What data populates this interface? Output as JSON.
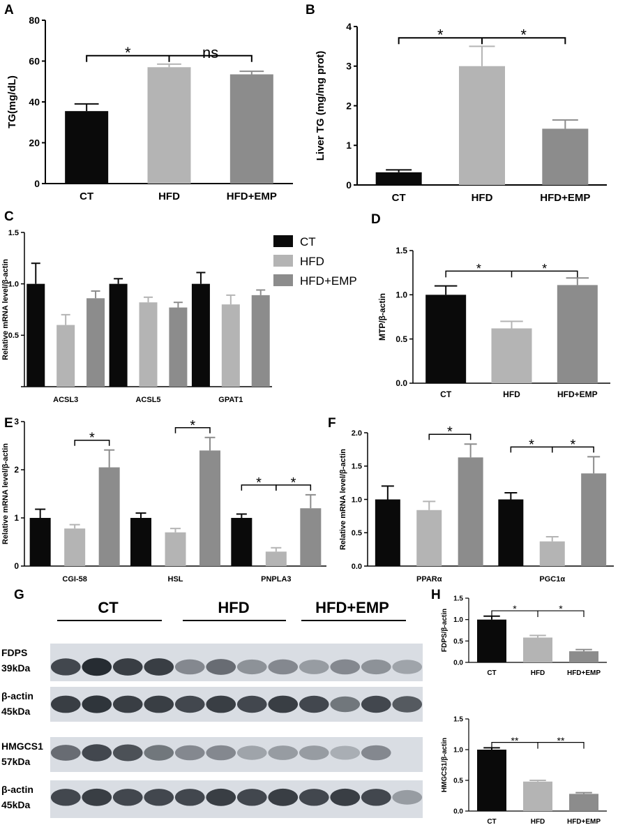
{
  "panel_labels": [
    "A",
    "B",
    "C",
    "D",
    "E",
    "F",
    "G",
    "H"
  ],
  "colors": {
    "CT": "#0a0a0a",
    "HFD": "#b4b4b4",
    "HFD+EMP": "#8c8c8c"
  },
  "legend": [
    {
      "key": "CT",
      "label": "CT"
    },
    {
      "key": "HFD",
      "label": "HFD"
    },
    {
      "key": "HFD+EMP",
      "label": "HFD+EMP"
    }
  ],
  "chart_data": [
    {
      "id": "A",
      "type": "bar",
      "ylabel": "TG(mg/dL)",
      "ylim": [
        0,
        80
      ],
      "yticks": [
        0,
        20,
        40,
        60,
        80
      ],
      "categories": [
        "CT",
        "HFD",
        "HFD+EMP"
      ],
      "values": [
        35.5,
        57,
        53.5
      ],
      "errors": [
        3.5,
        1.5,
        1.5
      ],
      "significance": [
        {
          "from": 0,
          "to": 1,
          "label": "*"
        },
        {
          "from": 1,
          "to": 2,
          "label": "ns"
        }
      ]
    },
    {
      "id": "B",
      "type": "bar",
      "ylabel": "Liver TG (mg/mg prot)",
      "ylim": [
        0,
        4
      ],
      "yticks": [
        0,
        1,
        2,
        3,
        4
      ],
      "categories": [
        "CT",
        "HFD",
        "HFD+EMP"
      ],
      "values": [
        0.32,
        3.0,
        1.42
      ],
      "errors": [
        0.06,
        0.5,
        0.22
      ],
      "significance": [
        {
          "from": 0,
          "to": 1,
          "label": "*"
        },
        {
          "from": 1,
          "to": 2,
          "label": "*"
        }
      ]
    },
    {
      "id": "C",
      "type": "bar",
      "ylabel": "Relative mRNA level/β-actin",
      "ylim": [
        0,
        1.5
      ],
      "yticks": [
        0.0,
        0.5,
        1.0,
        1.5
      ],
      "tick_labels": [
        "",
        "0.5",
        "1.0",
        "1.5"
      ],
      "categories": [
        "ACSL3",
        "ACSL5",
        "GPAT1"
      ],
      "series": [
        {
          "key": "CT",
          "values": [
            1.0,
            1.0,
            1.0
          ],
          "errors": [
            0.2,
            0.05,
            0.11
          ]
        },
        {
          "key": "HFD",
          "values": [
            0.6,
            0.82,
            0.8
          ],
          "errors": [
            0.1,
            0.05,
            0.09
          ]
        },
        {
          "key": "HFD+EMP",
          "values": [
            0.86,
            0.77,
            0.89
          ],
          "errors": [
            0.07,
            0.05,
            0.05
          ]
        }
      ],
      "significance": []
    },
    {
      "id": "D",
      "type": "bar",
      "ylabel": "MTP/β-actin",
      "ylim": [
        0,
        1.5
      ],
      "yticks": [
        0.0,
        0.5,
        1.0,
        1.5
      ],
      "categories": [
        "CT",
        "HFD",
        "HFD+EMP"
      ],
      "values": [
        1.0,
        0.62,
        1.11
      ],
      "errors": [
        0.1,
        0.08,
        0.08
      ],
      "significance": [
        {
          "from": 0,
          "to": 1,
          "label": "*"
        },
        {
          "from": 1,
          "to": 2,
          "label": "*"
        }
      ]
    },
    {
      "id": "E",
      "type": "bar",
      "ylabel": "Relative mRNA level/β-actin",
      "ylim": [
        0,
        3
      ],
      "yticks": [
        0,
        1,
        2,
        3
      ],
      "categories": [
        "CGI-58",
        "HSL",
        "PNPLA3"
      ],
      "series": [
        {
          "key": "CT",
          "values": [
            1.0,
            1.0,
            1.0
          ],
          "errors": [
            0.18,
            0.1,
            0.08
          ]
        },
        {
          "key": "HFD",
          "values": [
            0.78,
            0.7,
            0.3
          ],
          "errors": [
            0.08,
            0.08,
            0.08
          ]
        },
        {
          "key": "HFD+EMP",
          "values": [
            2.05,
            2.4,
            1.2
          ],
          "errors": [
            0.36,
            0.27,
            0.28
          ]
        }
      ],
      "significance": [
        {
          "group": 0,
          "from": 1,
          "to": 2,
          "label": "*"
        },
        {
          "group": 1,
          "from": 1,
          "to": 2,
          "label": "*"
        },
        {
          "group": 2,
          "from": 0,
          "to": 1,
          "label": "*"
        },
        {
          "group": 2,
          "from": 1,
          "to": 2,
          "label": "*"
        }
      ]
    },
    {
      "id": "F",
      "type": "bar",
      "ylabel": "Relative mRNA level/β-actin",
      "ylim": [
        0,
        2
      ],
      "yticks": [
        0.0,
        0.5,
        1.0,
        1.5,
        2.0
      ],
      "categories": [
        "PPARα",
        "PGC1α"
      ],
      "series": [
        {
          "key": "CT",
          "values": [
            1.0,
            1.0
          ],
          "errors": [
            0.2,
            0.1
          ]
        },
        {
          "key": "HFD",
          "values": [
            0.84,
            0.37
          ],
          "errors": [
            0.13,
            0.07
          ]
        },
        {
          "key": "HFD+EMP",
          "values": [
            1.63,
            1.39
          ],
          "errors": [
            0.2,
            0.25
          ]
        }
      ],
      "significance": [
        {
          "group": 0,
          "from": 1,
          "to": 2,
          "label": "*"
        },
        {
          "group": 1,
          "from": 0,
          "to": 1,
          "label": "*"
        },
        {
          "group": 1,
          "from": 1,
          "to": 2,
          "label": "*"
        }
      ]
    },
    {
      "id": "H1",
      "type": "bar",
      "ylabel": "FDPS/β-actin",
      "ylim": [
        0,
        1.5
      ],
      "yticks": [
        0.0,
        0.5,
        1.0,
        1.5
      ],
      "categories": [
        "CT",
        "HFD",
        "HFD+EMP"
      ],
      "values": [
        1.0,
        0.58,
        0.26
      ],
      "errors": [
        0.08,
        0.05,
        0.04
      ],
      "significance": [
        {
          "from": 0,
          "to": 1,
          "label": "*"
        },
        {
          "from": 1,
          "to": 2,
          "label": "*"
        }
      ]
    },
    {
      "id": "H2",
      "type": "bar",
      "ylabel": "HMGCS1/β-actin",
      "ylim": [
        0,
        1.5
      ],
      "yticks": [
        0.0,
        0.5,
        1.0,
        1.5
      ],
      "categories": [
        "CT",
        "HFD",
        "HFD+EMP"
      ],
      "values": [
        1.0,
        0.48,
        0.28
      ],
      "errors": [
        0.03,
        0.02,
        0.02
      ],
      "significance": [
        {
          "from": 0,
          "to": 1,
          "label": "**"
        },
        {
          "from": 1,
          "to": 2,
          "label": "**"
        }
      ]
    }
  ],
  "blot": {
    "groups": [
      "CT",
      "HFD",
      "HFD+EMP"
    ],
    "rows": [
      {
        "label": "FDPS",
        "size": "39kDa"
      },
      {
        "label": "β-actin",
        "size": "45kDa"
      },
      {
        "label": "HMGCS1",
        "size": "57kDa"
      },
      {
        "label": "β-actin",
        "size": "45kDa"
      }
    ]
  }
}
